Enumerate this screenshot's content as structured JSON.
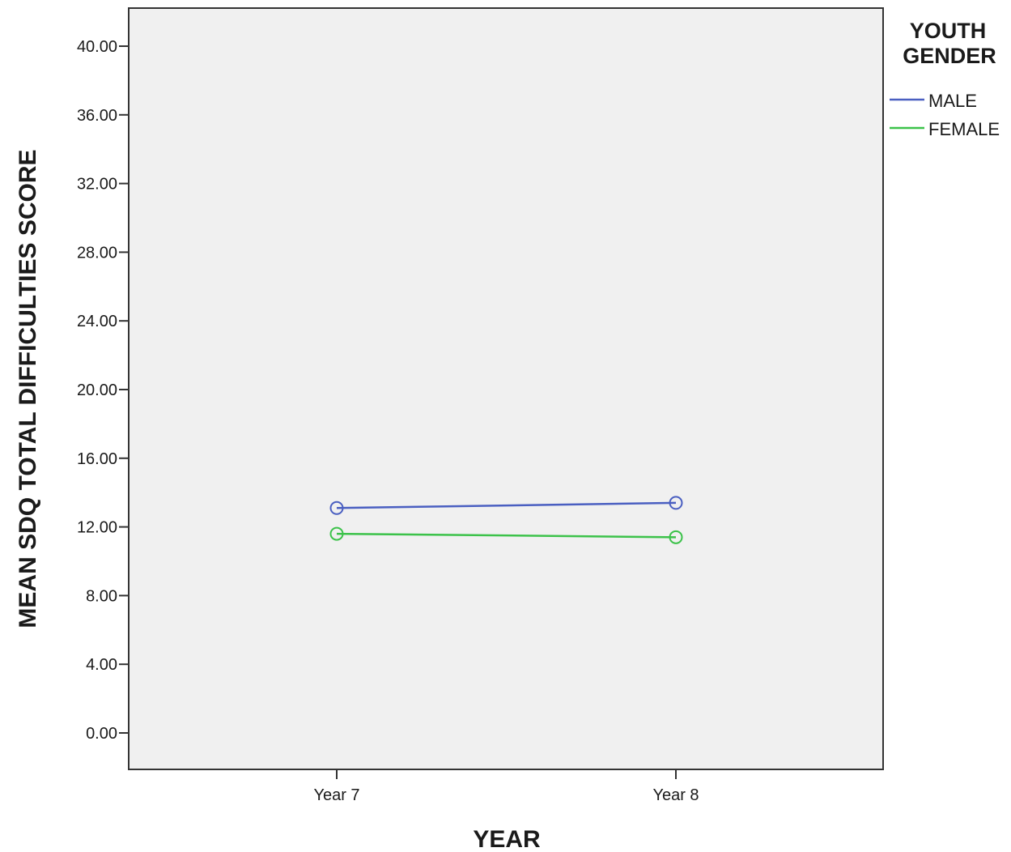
{
  "chart_data": {
    "type": "line",
    "xlabel": "YEAR",
    "ylabel": "MEAN SDQ TOTAL DIFFICULTIES SCORE",
    "categories": [
      "Year 7",
      "Year 8"
    ],
    "yticks": [
      "40.00",
      "36.00",
      "32.00",
      "28.00",
      "24.00",
      "20.00",
      "16.00",
      "12.00",
      "8.00",
      "4.00",
      "0.00"
    ],
    "ylim": [
      0,
      40
    ],
    "grid": false,
    "legend": {
      "title": [
        "YOUTH",
        "GENDER"
      ],
      "placement": "top-right, outside plot"
    },
    "series": [
      {
        "name": "MALE",
        "values": [
          13.1,
          13.4
        ],
        "color": "#4a5fc1"
      },
      {
        "name": "FEMALE",
        "values": [
          11.6,
          11.4
        ],
        "color": "#3cc24a"
      }
    ],
    "marker": "open-circle",
    "plot_background": "#f0f0f0"
  }
}
